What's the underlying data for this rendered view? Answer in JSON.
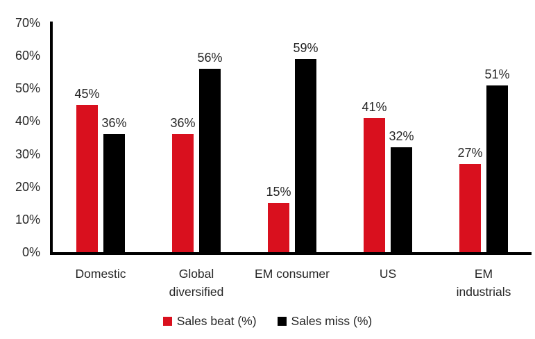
{
  "chart_data": {
    "type": "bar",
    "categories": [
      "Domestic",
      "Global\ndiversified",
      "EM consumer",
      "US",
      "EM\nindustrials"
    ],
    "series": [
      {
        "name": "Sales beat (%)",
        "color": "#d9101e",
        "values": [
          45,
          36,
          15,
          41,
          27
        ]
      },
      {
        "name": "Sales miss (%)",
        "color": "#000000",
        "values": [
          36,
          56,
          59,
          32,
          51
        ]
      }
    ],
    "title": "",
    "xlabel": "",
    "ylabel": "",
    "ylim": [
      0,
      70
    ],
    "ytick_step": 10,
    "ytick_labels": [
      "0%",
      "10%",
      "20%",
      "30%",
      "40%",
      "50%",
      "60%",
      "70%"
    ],
    "data_label_format": "{v}%",
    "grid": false,
    "legend_position": "bottom"
  },
  "colors": {
    "axis": "#000000",
    "text": "#262626",
    "background": "#ffffff",
    "series_beat": "#d9101e",
    "series_miss": "#000000"
  }
}
